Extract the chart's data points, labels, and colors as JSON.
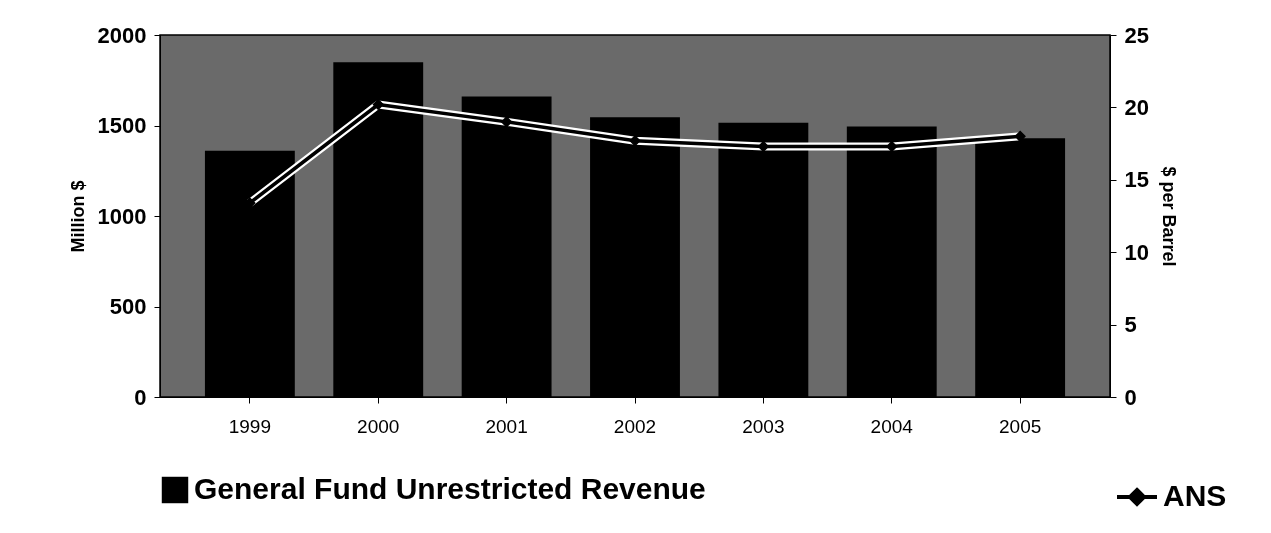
{
  "chart_data": {
    "type": "bar",
    "categories": [
      "1999",
      "2000",
      "2001",
      "2002",
      "2003",
      "2004",
      "2005"
    ],
    "ylabel": "Million $",
    "y2label": "$ per Barrel",
    "ylim": [
      0,
      2000
    ],
    "yticks": [
      0,
      500,
      1000,
      1500,
      2000
    ],
    "y2lim": [
      0,
      25
    ],
    "y2ticks": [
      0,
      5,
      10,
      15,
      20,
      25
    ],
    "series": [
      {
        "name": "General Fund Unrestricted Revenue",
        "color": "#000000",
        "values": [
          1360,
          1850,
          1660,
          1545,
          1515,
          1495,
          1430
        ]
      },
      {
        "name": "ANS",
        "type": "line",
        "axis": "y2",
        "color": "#000000",
        "values": [
          13.4,
          20.2,
          19.0,
          17.7,
          17.3,
          17.3,
          18.0
        ]
      }
    ],
    "marker": "diamond",
    "grid": false,
    "legend": "bottom"
  }
}
